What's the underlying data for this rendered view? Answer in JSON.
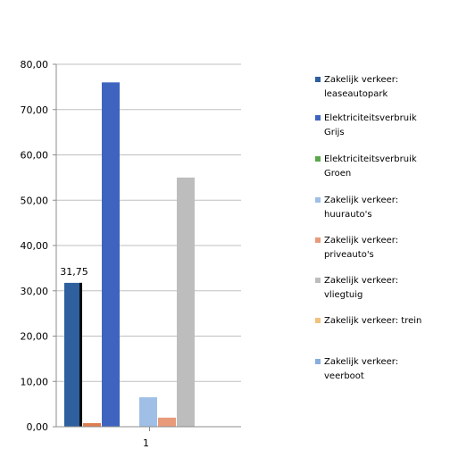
{
  "chart_data": {
    "type": "bar",
    "categories": [
      "1"
    ],
    "ylim": [
      0,
      80
    ],
    "yticks": [
      "0,00",
      "10,00",
      "20,00",
      "30,00",
      "40,00",
      "50,00",
      "60,00",
      "70,00",
      "80,00"
    ],
    "grid": true,
    "legend_position": "right",
    "series": [
      {
        "name": "Zakelijk verkeer: leaseautopark",
        "values": [
          31.75
        ],
        "color": "#2e5f9e",
        "data_label": "31,75"
      },
      {
        "name": "Zakelijk verkeer: leaseautopark",
        "values": [
          0.8
        ],
        "color": "#e07c50"
      },
      {
        "name": "Elektriciteitsverbruik Grijs",
        "values": [
          76.0
        ],
        "color": "#3e64c0"
      },
      {
        "name": "Elektriciteitsverbruik Groen",
        "values": [
          0
        ],
        "color": "#5aa84a"
      },
      {
        "name": "Zakelijk verkeer: huurauto's",
        "values": [
          6.5
        ],
        "color": "#9fbfe6"
      },
      {
        "name": "Zakelijk verkeer: priveauto's",
        "values": [
          2.0
        ],
        "color": "#e99a7a"
      },
      {
        "name": "Zakelijk verkeer: vliegtuig",
        "values": [
          55.0
        ],
        "color": "#bdbdbd"
      },
      {
        "name": "Zakelijk verkeer: trein",
        "values": [
          0
        ],
        "color": "#f1c27d"
      },
      {
        "name": "Zakelijk verkeer: veerboot",
        "values": [
          0
        ],
        "color": "#88aee0"
      }
    ],
    "legend": [
      {
        "lines": [
          "Zakelijk verkeer:",
          "leaseautopark"
        ],
        "color": "#2e5f9e"
      },
      {
        "lines": [
          "Elektriciteitsverbruik",
          "Grijs"
        ],
        "color": "#3e64c0"
      },
      {
        "lines": [
          "Elektriciteitsverbruik",
          "Groen"
        ],
        "color": "#5aa84a"
      },
      {
        "lines": [
          "Zakelijk verkeer:",
          "huurauto's"
        ],
        "color": "#9fbfe6"
      },
      {
        "lines": [
          "Zakelijk verkeer:",
          "priveauto's"
        ],
        "color": "#e99a7a"
      },
      {
        "lines": [
          "Zakelijk verkeer:",
          "vliegtuig"
        ],
        "color": "#bdbdbd"
      },
      {
        "lines": [
          "Zakelijk verkeer: trein"
        ],
        "color": "#f1c27d"
      },
      {
        "lines": [
          "Zakelijk verkeer:",
          "veerboot"
        ],
        "color": "#88aee0"
      }
    ]
  }
}
